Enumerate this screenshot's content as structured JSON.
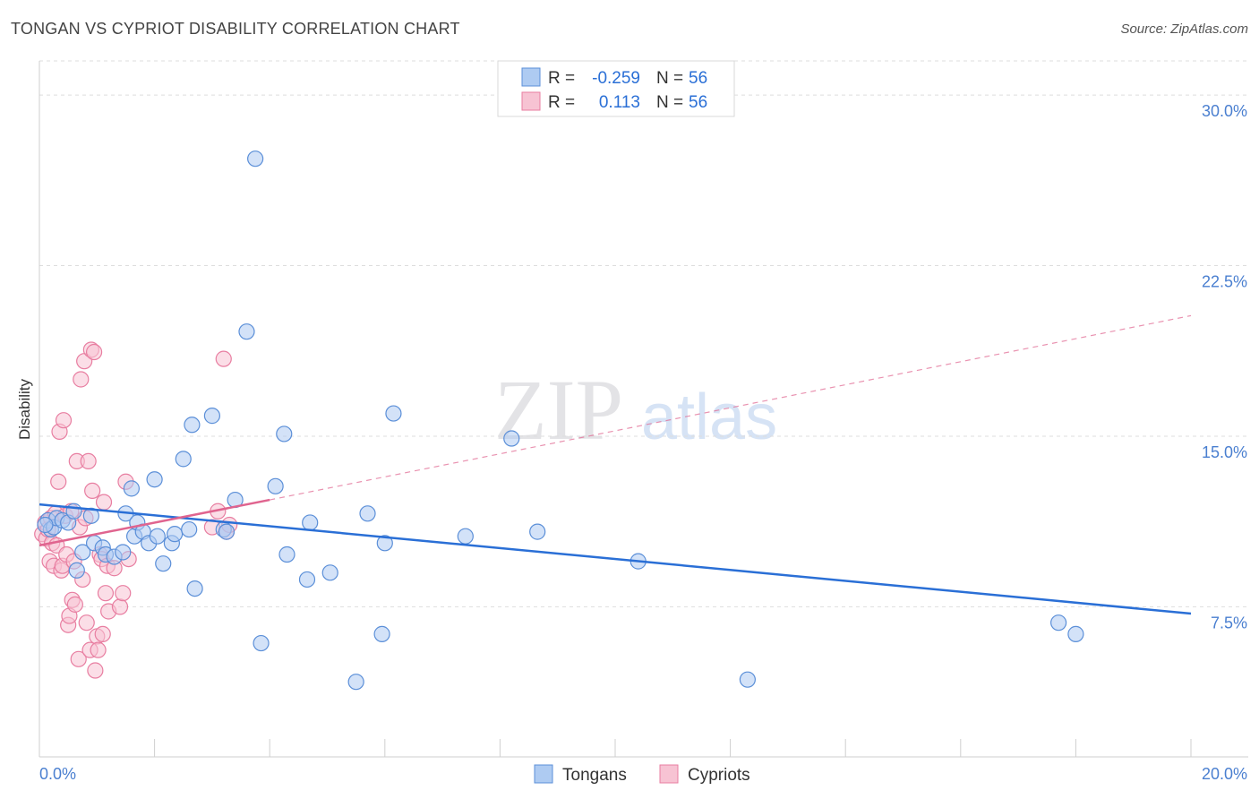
{
  "title": "TONGAN VS CYPRIOT DISABILITY CORRELATION CHART",
  "source": "Source: ZipAtlas.com",
  "watermark": {
    "part1": "ZIP",
    "part2": "atlas"
  },
  "colors": {
    "tongans_fill": "#aecbf2",
    "tongans_stroke": "#5b8fd8",
    "tongans_line": "#2a6fd6",
    "cypriots_fill": "#f7c3d3",
    "cypriots_stroke": "#e87ea1",
    "cypriots_line": "#e0648f",
    "grid": "#dddddd",
    "axis_text": "#4a7fd0"
  },
  "legend": {
    "rows": [
      {
        "r_label": "R = ",
        "r_value": "-0.259",
        "n_label": "N = ",
        "n_value": "56"
      },
      {
        "r_label": "R = ",
        "r_value": "0.113",
        "n_label": "N = ",
        "n_value": "56"
      }
    ]
  },
  "bottom_legend": [
    "Tongans",
    "Cypriots"
  ],
  "chart_data": {
    "type": "scatter",
    "title": "TONGAN VS CYPRIOT DISABILITY CORRELATION CHART",
    "xlabel": "",
    "ylabel": "Disability",
    "xlim": [
      0,
      20
    ],
    "ylim": [
      0.9,
      31.5
    ],
    "x_tick_labels": [
      "0.0%",
      "20.0%"
    ],
    "y_ticks": [
      7.5,
      15.0,
      22.5,
      30.0
    ],
    "y_tick_labels": [
      "7.5%",
      "15.0%",
      "22.5%",
      "30.0%"
    ],
    "grid": true,
    "legend_position": "top-center",
    "series": [
      {
        "name": "Tongans",
        "r": -0.259,
        "n": 56,
        "trend": {
          "x0": 0,
          "y0": 12.0,
          "x1": 20,
          "y1": 7.2
        },
        "points": [
          [
            0.15,
            11.3
          ],
          [
            0.2,
            10.9
          ],
          [
            0.25,
            11.0
          ],
          [
            0.3,
            11.4
          ],
          [
            0.4,
            11.3
          ],
          [
            0.5,
            11.2
          ],
          [
            0.6,
            11.7
          ],
          [
            0.65,
            9.1
          ],
          [
            0.75,
            9.9
          ],
          [
            0.9,
            11.5
          ],
          [
            0.95,
            10.3
          ],
          [
            1.1,
            10.1
          ],
          [
            1.15,
            9.8
          ],
          [
            1.3,
            9.7
          ],
          [
            1.45,
            9.9
          ],
          [
            1.5,
            11.6
          ],
          [
            1.6,
            12.7
          ],
          [
            1.65,
            10.6
          ],
          [
            1.7,
            11.2
          ],
          [
            1.8,
            10.8
          ],
          [
            1.9,
            10.3
          ],
          [
            2.0,
            13.1
          ],
          [
            2.05,
            10.6
          ],
          [
            2.15,
            9.4
          ],
          [
            2.3,
            10.3
          ],
          [
            2.35,
            10.7
          ],
          [
            2.5,
            14.0
          ],
          [
            2.6,
            10.9
          ],
          [
            2.65,
            15.5
          ],
          [
            2.7,
            8.3
          ],
          [
            3.0,
            15.9
          ],
          [
            3.2,
            10.9
          ],
          [
            3.4,
            12.2
          ],
          [
            3.6,
            19.6
          ],
          [
            3.75,
            27.2
          ],
          [
            3.85,
            5.9
          ],
          [
            4.1,
            12.8
          ],
          [
            4.25,
            15.1
          ],
          [
            4.3,
            9.8
          ],
          [
            4.65,
            8.7
          ],
          [
            4.7,
            11.2
          ],
          [
            5.05,
            9.0
          ],
          [
            5.5,
            4.2
          ],
          [
            5.7,
            11.6
          ],
          [
            5.95,
            6.3
          ],
          [
            6.0,
            10.3
          ],
          [
            6.15,
            16.0
          ],
          [
            7.4,
            10.6
          ],
          [
            8.2,
            14.9
          ],
          [
            8.65,
            10.8
          ],
          [
            10.4,
            9.5
          ],
          [
            12.3,
            4.3
          ],
          [
            17.7,
            6.8
          ],
          [
            18.0,
            6.3
          ],
          [
            0.1,
            11.1
          ],
          [
            3.25,
            10.8
          ]
        ]
      },
      {
        "name": "Cypriots",
        "r": 0.113,
        "n": 56,
        "trend": {
          "x0": 0,
          "y0": 10.2,
          "x1": 4.0,
          "y1": 12.2,
          "dashed_to_x": 20,
          "dashed_to_y": 20.3
        },
        "points": [
          [
            0.05,
            10.7
          ],
          [
            0.1,
            11.2
          ],
          [
            0.12,
            10.5
          ],
          [
            0.15,
            10.9
          ],
          [
            0.18,
            9.5
          ],
          [
            0.2,
            11.4
          ],
          [
            0.22,
            10.3
          ],
          [
            0.25,
            9.3
          ],
          [
            0.28,
            11.6
          ],
          [
            0.3,
            10.2
          ],
          [
            0.33,
            13.0
          ],
          [
            0.35,
            15.2
          ],
          [
            0.38,
            9.1
          ],
          [
            0.4,
            9.3
          ],
          [
            0.42,
            15.7
          ],
          [
            0.45,
            11.5
          ],
          [
            0.47,
            9.8
          ],
          [
            0.5,
            6.7
          ],
          [
            0.52,
            7.1
          ],
          [
            0.55,
            11.7
          ],
          [
            0.57,
            7.8
          ],
          [
            0.6,
            9.5
          ],
          [
            0.62,
            7.6
          ],
          [
            0.65,
            13.9
          ],
          [
            0.68,
            5.2
          ],
          [
            0.7,
            11.0
          ],
          [
            0.72,
            17.5
          ],
          [
            0.75,
            8.7
          ],
          [
            0.78,
            18.3
          ],
          [
            0.8,
            11.4
          ],
          [
            0.82,
            6.8
          ],
          [
            0.85,
            13.9
          ],
          [
            0.88,
            5.6
          ],
          [
            0.9,
            18.8
          ],
          [
            0.92,
            12.6
          ],
          [
            0.95,
            18.7
          ],
          [
            0.97,
            4.7
          ],
          [
            1.0,
            6.2
          ],
          [
            1.02,
            5.6
          ],
          [
            1.05,
            9.8
          ],
          [
            1.08,
            9.6
          ],
          [
            1.1,
            6.3
          ],
          [
            1.12,
            12.1
          ],
          [
            1.15,
            8.1
          ],
          [
            1.18,
            9.3
          ],
          [
            1.2,
            7.3
          ],
          [
            1.3,
            9.2
          ],
          [
            1.4,
            7.5
          ],
          [
            1.45,
            8.1
          ],
          [
            1.5,
            13.0
          ],
          [
            1.55,
            9.6
          ],
          [
            3.0,
            11.0
          ],
          [
            3.2,
            18.4
          ],
          [
            3.25,
            10.8
          ],
          [
            3.3,
            11.1
          ],
          [
            3.1,
            11.7
          ]
        ]
      }
    ]
  }
}
